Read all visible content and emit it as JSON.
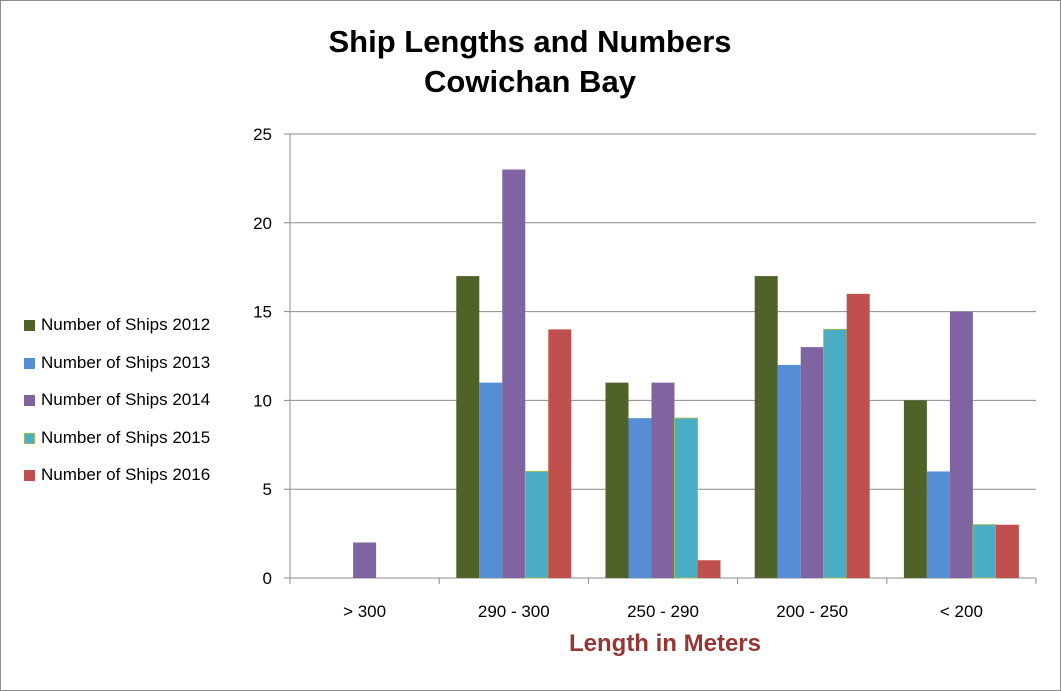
{
  "chart_data": {
    "type": "bar",
    "title_lines": [
      "Ship Lengths and Numbers",
      "Cowichan Bay"
    ],
    "xlabel": "Length in Meters",
    "xlabel_color": "#953735",
    "ylabel": "",
    "categories": [
      "> 300",
      "290 - 300",
      "250 - 290",
      "200 - 250",
      "< 200"
    ],
    "ylim": [
      0,
      25
    ],
    "yticks": [
      0,
      5,
      10,
      15,
      20,
      25
    ],
    "grid": true,
    "legend_position": "left",
    "series": [
      {
        "name": "Number of Ships 2012",
        "color": "#4f6228",
        "values": [
          0,
          17,
          11,
          17,
          10
        ]
      },
      {
        "name": "Number of Ships 2013",
        "color": "#558ed5",
        "values": [
          0,
          11,
          9,
          12,
          6
        ]
      },
      {
        "name": "Number of Ships 2014",
        "color": "#8064a2",
        "values": [
          2,
          23,
          11,
          13,
          15
        ]
      },
      {
        "name": "Number of Ships 2015",
        "color": "#4bacc6",
        "edge_color": "#9bbb59",
        "values": [
          0,
          6,
          9,
          14,
          3
        ]
      },
      {
        "name": "Number of Ships 2016",
        "color": "#c0504d",
        "values": [
          0,
          14,
          1,
          16,
          3
        ]
      }
    ]
  }
}
